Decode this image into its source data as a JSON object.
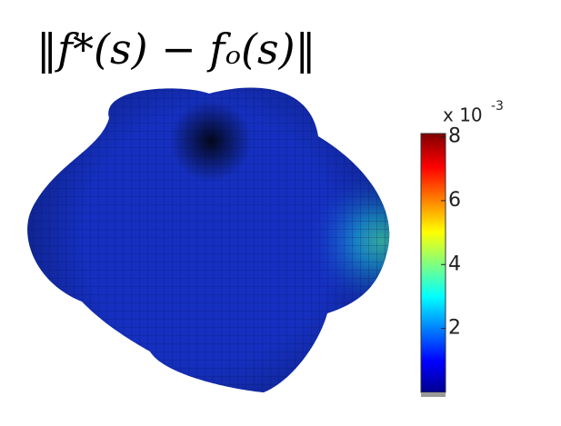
{
  "chart_data": {
    "type": "surface",
    "title": "‖f*(s) − fₒ(s)‖",
    "colorbar": {
      "lim": [
        0,
        8.1
      ],
      "ticks": [
        2,
        4,
        6,
        8
      ],
      "exponent_base": "x 10",
      "exponent": "-3"
    }
  }
}
